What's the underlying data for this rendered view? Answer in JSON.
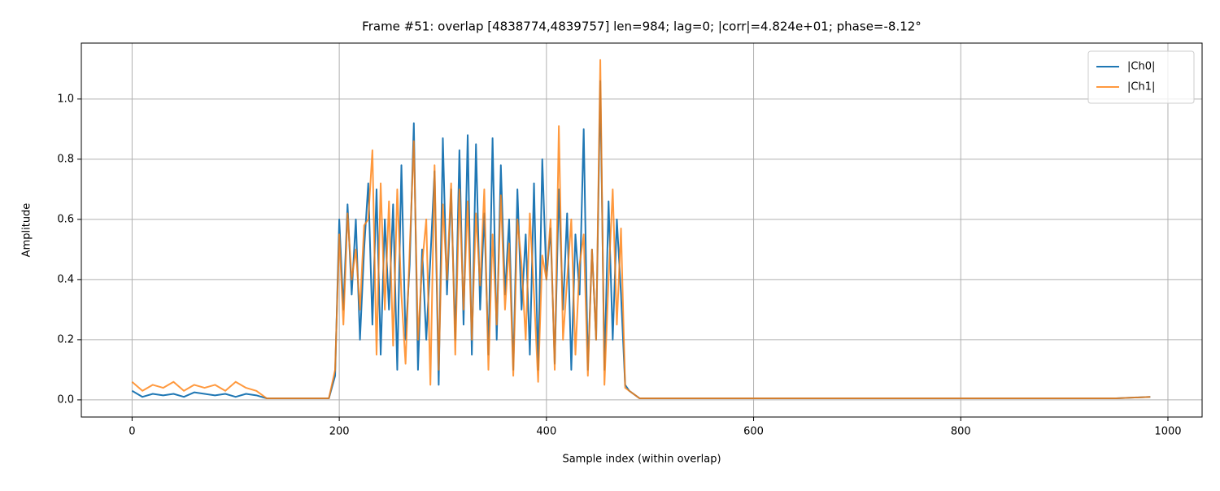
{
  "chart_data": {
    "type": "line",
    "title": "Frame #51: overlap [4838774,4839757]  len=984; lag=0; |corr|=4.824e+01; phase=-8.12°",
    "x_label": "Sample index (within overlap)",
    "y_label": "Amplitude",
    "x": [
      0,
      10,
      20,
      30,
      40,
      50,
      60,
      70,
      80,
      90,
      100,
      110,
      120,
      130,
      150,
      170,
      190,
      196,
      200,
      204,
      208,
      212,
      216,
      220,
      224,
      228,
      232,
      236,
      240,
      244,
      248,
      252,
      256,
      260,
      264,
      268,
      272,
      276,
      280,
      284,
      288,
      292,
      296,
      300,
      304,
      308,
      312,
      316,
      320,
      324,
      328,
      332,
      336,
      340,
      344,
      348,
      352,
      356,
      360,
      364,
      368,
      372,
      376,
      380,
      384,
      388,
      392,
      396,
      400,
      404,
      408,
      412,
      416,
      420,
      424,
      428,
      432,
      436,
      440,
      444,
      448,
      452,
      456,
      460,
      464,
      468,
      472,
      476,
      480,
      490,
      500,
      550,
      600,
      650,
      700,
      750,
      800,
      850,
      900,
      950,
      983
    ],
    "series": [
      {
        "name": "|Ch0|",
        "color": "#1f77b4",
        "opacity": 1,
        "values": [
          0.03,
          0.01,
          0.02,
          0.015,
          0.02,
          0.01,
          0.025,
          0.02,
          0.015,
          0.02,
          0.01,
          0.02,
          0.015,
          0.005,
          0.005,
          0.005,
          0.005,
          0.08,
          0.6,
          0.3,
          0.65,
          0.35,
          0.6,
          0.2,
          0.5,
          0.72,
          0.25,
          0.7,
          0.15,
          0.6,
          0.3,
          0.65,
          0.1,
          0.78,
          0.2,
          0.45,
          0.92,
          0.1,
          0.5,
          0.2,
          0.47,
          0.76,
          0.05,
          0.87,
          0.35,
          0.7,
          0.2,
          0.83,
          0.25,
          0.88,
          0.15,
          0.85,
          0.3,
          0.62,
          0.15,
          0.87,
          0.2,
          0.78,
          0.35,
          0.6,
          0.1,
          0.7,
          0.3,
          0.55,
          0.15,
          0.72,
          0.1,
          0.8,
          0.4,
          0.57,
          0.12,
          0.7,
          0.3,
          0.62,
          0.1,
          0.55,
          0.35,
          0.9,
          0.1,
          0.5,
          0.2,
          1.06,
          0.1,
          0.66,
          0.2,
          0.6,
          0.35,
          0.05,
          0.03,
          0.005,
          0.005,
          0.005,
          0.005,
          0.005,
          0.005,
          0.005,
          0.005,
          0.005,
          0.005,
          0.005,
          0.01
        ]
      },
      {
        "name": "|Ch1|",
        "color": "#ff7f0e",
        "opacity": 0.8,
        "values": [
          0.06,
          0.03,
          0.05,
          0.04,
          0.06,
          0.03,
          0.05,
          0.04,
          0.05,
          0.03,
          0.06,
          0.04,
          0.03,
          0.005,
          0.005,
          0.005,
          0.005,
          0.1,
          0.55,
          0.25,
          0.62,
          0.4,
          0.5,
          0.3,
          0.58,
          0.6,
          0.83,
          0.15,
          0.72,
          0.3,
          0.66,
          0.18,
          0.7,
          0.35,
          0.12,
          0.5,
          0.86,
          0.2,
          0.45,
          0.6,
          0.05,
          0.78,
          0.1,
          0.65,
          0.4,
          0.72,
          0.15,
          0.7,
          0.3,
          0.66,
          0.2,
          0.62,
          0.38,
          0.7,
          0.1,
          0.55,
          0.25,
          0.68,
          0.3,
          0.52,
          0.08,
          0.6,
          0.45,
          0.2,
          0.62,
          0.35,
          0.06,
          0.48,
          0.4,
          0.6,
          0.1,
          0.91,
          0.2,
          0.4,
          0.6,
          0.15,
          0.45,
          0.55,
          0.08,
          0.5,
          0.2,
          1.13,
          0.05,
          0.4,
          0.7,
          0.25,
          0.57,
          0.04,
          0.03,
          0.005,
          0.005,
          0.005,
          0.005,
          0.005,
          0.005,
          0.005,
          0.005,
          0.005,
          0.005,
          0.005,
          0.01
        ]
      }
    ],
    "xlim": [
      -49,
      1033
    ],
    "xticks": [
      0,
      200,
      400,
      600,
      800,
      1000
    ],
    "ylim": [
      -0.057,
      1.186
    ],
    "yticks": [
      {
        "value": 0,
        "label": "0.0"
      },
      0.2,
      0.4,
      0.6,
      0.8,
      {
        "value": 1,
        "label": "1.0"
      }
    ],
    "grid": true,
    "legend": "upper right"
  }
}
